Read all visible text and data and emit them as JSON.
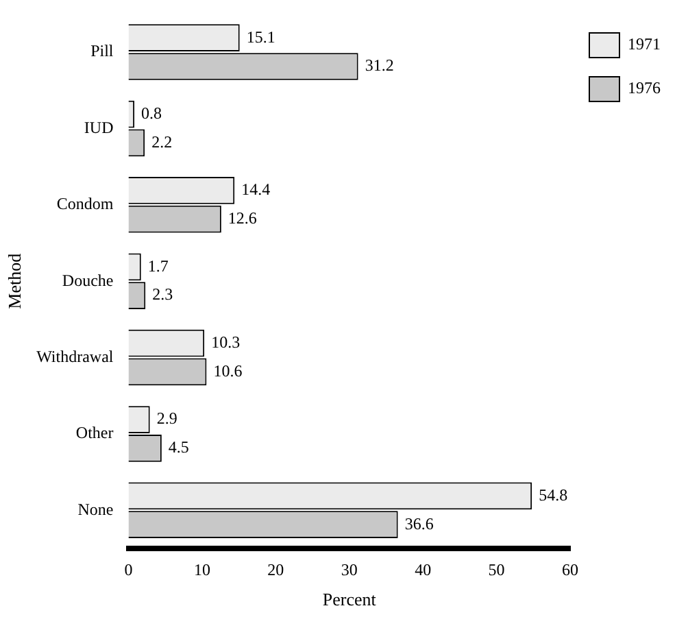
{
  "chart_data": {
    "type": "bar",
    "orientation": "horizontal",
    "xlabel": "Percent",
    "ylabel": "Method",
    "categories": [
      "Pill",
      "IUD",
      "Condom",
      "Douche",
      "Withdrawal",
      "Other",
      "None"
    ],
    "series": [
      {
        "name": "1971",
        "color": "#ebebeb",
        "values": [
          15.1,
          0.8,
          14.4,
          1.7,
          10.3,
          2.9,
          54.8
        ]
      },
      {
        "name": "1976",
        "color": "#c8c8c8",
        "values": [
          31.2,
          2.2,
          12.6,
          2.3,
          10.6,
          4.5,
          36.6
        ]
      }
    ],
    "xlim": [
      0,
      60
    ],
    "xticks": [
      0,
      10,
      20,
      30,
      40,
      50,
      60
    ],
    "grid": false,
    "legend": "top right",
    "data_labels": true
  }
}
